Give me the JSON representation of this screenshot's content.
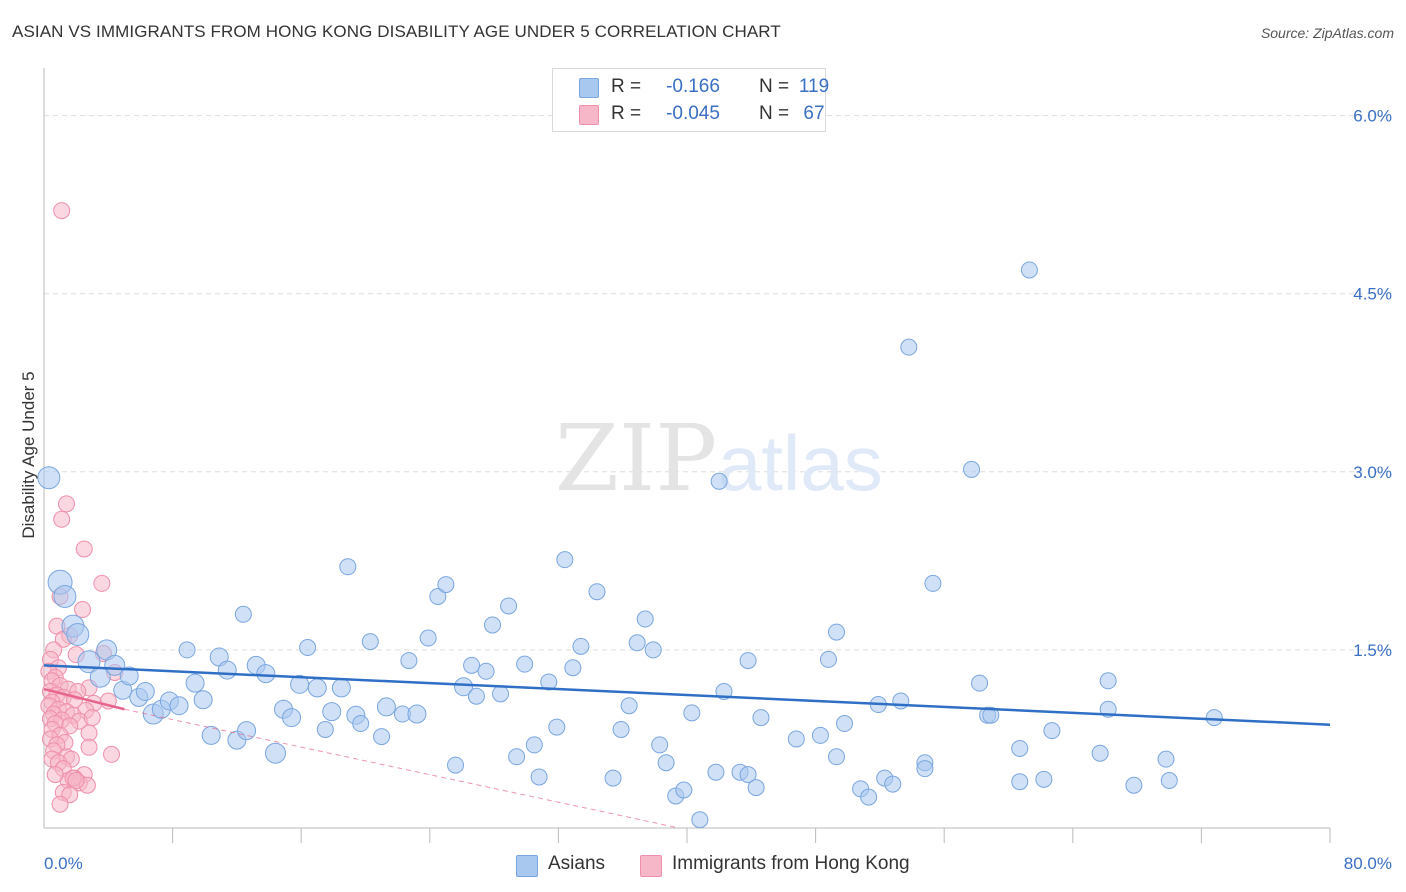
{
  "title": "ASIAN VS IMMIGRANTS FROM HONG KONG DISABILITY AGE UNDER 5 CORRELATION CHART",
  "source": "Source: ZipAtlas.com",
  "watermark": {
    "zip": "ZIP",
    "atlas": "atlas"
  },
  "legend": {
    "asians": {
      "r_label": "R =",
      "r_value": "-0.166",
      "n_label": "N =",
      "n_value": "119"
    },
    "hongkong": {
      "r_label": "R =",
      "r_value": "-0.045",
      "n_label": "N =",
      "n_value": "67"
    }
  },
  "bottom_legend": {
    "asians": "Asians",
    "hongkong": "Immigrants from Hong Kong"
  },
  "colors": {
    "asian_fill": "#a9c8f0",
    "asian_stroke": "#7aa6de",
    "asian_line": "#2f6fc6",
    "hk_fill": "#f6b7c9",
    "hk_stroke": "#ef8fab",
    "hk_line": "#e8668d",
    "tick_label": "#3a6fc4",
    "grid": "#dddddd"
  },
  "chart_data": {
    "type": "scatter",
    "title": "ASIAN VS IMMIGRANTS FROM HONG KONG DISABILITY AGE UNDER 5 CORRELATION CHART",
    "xlabel": "",
    "ylabel": "Disability Age Under 5",
    "xlim": [
      0,
      80
    ],
    "ylim": [
      0,
      6.3
    ],
    "x_tick_labels": [
      {
        "value": 0,
        "label": "0.0%"
      },
      {
        "value": 80,
        "label": "80.0%"
      }
    ],
    "y_tick_labels": [
      {
        "value": 1.5,
        "label": "1.5%"
      },
      {
        "value": 3.0,
        "label": "3.0%"
      },
      {
        "value": 4.5,
        "label": "4.5%"
      },
      {
        "value": 6.0,
        "label": "6.0%"
      }
    ],
    "grid": true,
    "series": [
      {
        "name": "Asians",
        "R": -0.166,
        "N": 119,
        "trend": {
          "x": [
            0,
            80
          ],
          "y": [
            1.37,
            0.87
          ]
        },
        "points": [
          {
            "x": 0.3,
            "y": 2.95,
            "s": 11
          },
          {
            "x": 1.0,
            "y": 2.07,
            "s": 12
          },
          {
            "x": 1.3,
            "y": 1.95,
            "s": 11
          },
          {
            "x": 1.8,
            "y": 1.7,
            "s": 11
          },
          {
            "x": 2.1,
            "y": 1.63,
            "s": 11
          },
          {
            "x": 2.8,
            "y": 1.4,
            "s": 11
          },
          {
            "x": 3.5,
            "y": 1.27,
            "s": 10
          },
          {
            "x": 3.9,
            "y": 1.5,
            "s": 10
          },
          {
            "x": 4.4,
            "y": 1.37,
            "s": 10
          },
          {
            "x": 4.9,
            "y": 1.16,
            "s": 9
          },
          {
            "x": 5.3,
            "y": 1.28,
            "s": 9
          },
          {
            "x": 5.9,
            "y": 1.1,
            "s": 9
          },
          {
            "x": 6.3,
            "y": 1.15,
            "s": 9
          },
          {
            "x": 6.8,
            "y": 0.96,
            "s": 10
          },
          {
            "x": 7.3,
            "y": 1.0,
            "s": 9
          },
          {
            "x": 7.8,
            "y": 1.07,
            "s": 9
          },
          {
            "x": 8.4,
            "y": 1.03,
            "s": 9
          },
          {
            "x": 8.9,
            "y": 1.5,
            "s": 8
          },
          {
            "x": 9.4,
            "y": 1.22,
            "s": 9
          },
          {
            "x": 9.9,
            "y": 1.08,
            "s": 9
          },
          {
            "x": 10.4,
            "y": 0.78,
            "s": 9
          },
          {
            "x": 10.9,
            "y": 1.44,
            "s": 9
          },
          {
            "x": 11.4,
            "y": 1.33,
            "s": 9
          },
          {
            "x": 12.0,
            "y": 0.74,
            "s": 9
          },
          {
            "x": 12.6,
            "y": 0.82,
            "s": 9
          },
          {
            "x": 12.4,
            "y": 1.8,
            "s": 8
          },
          {
            "x": 13.2,
            "y": 1.37,
            "s": 9
          },
          {
            "x": 13.8,
            "y": 1.3,
            "s": 9
          },
          {
            "x": 14.4,
            "y": 0.63,
            "s": 10
          },
          {
            "x": 14.9,
            "y": 1.0,
            "s": 9
          },
          {
            "x": 15.4,
            "y": 0.93,
            "s": 9
          },
          {
            "x": 15.9,
            "y": 1.21,
            "s": 9
          },
          {
            "x": 16.4,
            "y": 1.52,
            "s": 8
          },
          {
            "x": 17.0,
            "y": 1.18,
            "s": 9
          },
          {
            "x": 17.5,
            "y": 0.83,
            "s": 8
          },
          {
            "x": 17.9,
            "y": 0.98,
            "s": 9
          },
          {
            "x": 18.5,
            "y": 1.18,
            "s": 9
          },
          {
            "x": 18.9,
            "y": 2.2,
            "s": 8
          },
          {
            "x": 19.4,
            "y": 0.95,
            "s": 9
          },
          {
            "x": 19.7,
            "y": 0.88,
            "s": 8
          },
          {
            "x": 20.3,
            "y": 1.57,
            "s": 8
          },
          {
            "x": 21.0,
            "y": 0.77,
            "s": 8
          },
          {
            "x": 21.3,
            "y": 1.02,
            "s": 9
          },
          {
            "x": 22.3,
            "y": 0.96,
            "s": 8
          },
          {
            "x": 22.7,
            "y": 1.41,
            "s": 8
          },
          {
            "x": 23.2,
            "y": 0.96,
            "s": 9
          },
          {
            "x": 23.9,
            "y": 1.6,
            "s": 8
          },
          {
            "x": 24.5,
            "y": 1.95,
            "s": 8
          },
          {
            "x": 25.0,
            "y": 2.05,
            "s": 8
          },
          {
            "x": 25.6,
            "y": 0.53,
            "s": 8
          },
          {
            "x": 26.1,
            "y": 1.19,
            "s": 9
          },
          {
            "x": 26.6,
            "y": 1.37,
            "s": 8
          },
          {
            "x": 26.9,
            "y": 1.11,
            "s": 8
          },
          {
            "x": 27.5,
            "y": 1.32,
            "s": 8
          },
          {
            "x": 27.9,
            "y": 1.71,
            "s": 8
          },
          {
            "x": 28.4,
            "y": 1.13,
            "s": 8
          },
          {
            "x": 28.9,
            "y": 1.87,
            "s": 8
          },
          {
            "x": 29.4,
            "y": 0.6,
            "s": 8
          },
          {
            "x": 29.9,
            "y": 1.38,
            "s": 8
          },
          {
            "x": 30.5,
            "y": 0.7,
            "s": 8
          },
          {
            "x": 30.8,
            "y": 0.43,
            "s": 8
          },
          {
            "x": 31.4,
            "y": 1.23,
            "s": 8
          },
          {
            "x": 31.9,
            "y": 0.85,
            "s": 8
          },
          {
            "x": 32.4,
            "y": 2.26,
            "s": 8
          },
          {
            "x": 32.9,
            "y": 1.35,
            "s": 8
          },
          {
            "x": 33.4,
            "y": 1.53,
            "s": 8
          },
          {
            "x": 34.4,
            "y": 1.99,
            "s": 8
          },
          {
            "x": 35.4,
            "y": 0.42,
            "s": 8
          },
          {
            "x": 35.9,
            "y": 0.83,
            "s": 8
          },
          {
            "x": 36.4,
            "y": 1.03,
            "s": 8
          },
          {
            "x": 36.9,
            "y": 1.56,
            "s": 8
          },
          {
            "x": 37.4,
            "y": 1.76,
            "s": 8
          },
          {
            "x": 37.9,
            "y": 1.5,
            "s": 8
          },
          {
            "x": 38.3,
            "y": 0.7,
            "s": 8
          },
          {
            "x": 38.7,
            "y": 0.55,
            "s": 8
          },
          {
            "x": 39.3,
            "y": 0.27,
            "s": 8
          },
          {
            "x": 39.8,
            "y": 0.32,
            "s": 8
          },
          {
            "x": 40.3,
            "y": 0.97,
            "s": 8
          },
          {
            "x": 40.8,
            "y": 0.07,
            "s": 8
          },
          {
            "x": 41.8,
            "y": 0.47,
            "s": 8
          },
          {
            "x": 42.3,
            "y": 1.15,
            "s": 8
          },
          {
            "x": 42.0,
            "y": 2.92,
            "s": 8
          },
          {
            "x": 43.3,
            "y": 0.47,
            "s": 8
          },
          {
            "x": 43.8,
            "y": 0.45,
            "s": 8
          },
          {
            "x": 44.3,
            "y": 0.34,
            "s": 8
          },
          {
            "x": 44.6,
            "y": 0.93,
            "s": 8
          },
          {
            "x": 43.8,
            "y": 1.41,
            "s": 8
          },
          {
            "x": 46.8,
            "y": 0.75,
            "s": 8
          },
          {
            "x": 48.3,
            "y": 0.78,
            "s": 8
          },
          {
            "x": 48.8,
            "y": 1.42,
            "s": 8
          },
          {
            "x": 49.3,
            "y": 1.65,
            "s": 8
          },
          {
            "x": 49.8,
            "y": 0.88,
            "s": 8
          },
          {
            "x": 49.3,
            "y": 0.6,
            "s": 8
          },
          {
            "x": 50.8,
            "y": 0.33,
            "s": 8
          },
          {
            "x": 51.3,
            "y": 0.26,
            "s": 8
          },
          {
            "x": 51.9,
            "y": 1.04,
            "s": 8
          },
          {
            "x": 52.3,
            "y": 0.42,
            "s": 8
          },
          {
            "x": 52.8,
            "y": 0.37,
            "s": 8
          },
          {
            "x": 53.3,
            "y": 1.07,
            "s": 8
          },
          {
            "x": 53.8,
            "y": 4.05,
            "s": 8
          },
          {
            "x": 54.8,
            "y": 0.55,
            "s": 8
          },
          {
            "x": 54.8,
            "y": 0.5,
            "s": 8
          },
          {
            "x": 55.3,
            "y": 2.06,
            "s": 8
          },
          {
            "x": 57.7,
            "y": 3.02,
            "s": 8
          },
          {
            "x": 58.2,
            "y": 1.22,
            "s": 8
          },
          {
            "x": 58.7,
            "y": 0.95,
            "s": 8
          },
          {
            "x": 58.9,
            "y": 0.95,
            "s": 8
          },
          {
            "x": 60.7,
            "y": 0.39,
            "s": 8
          },
          {
            "x": 60.7,
            "y": 0.67,
            "s": 8
          },
          {
            "x": 61.3,
            "y": 4.7,
            "s": 8
          },
          {
            "x": 62.2,
            "y": 0.41,
            "s": 8
          },
          {
            "x": 62.7,
            "y": 0.82,
            "s": 8
          },
          {
            "x": 65.7,
            "y": 0.63,
            "s": 8
          },
          {
            "x": 66.2,
            "y": 1.0,
            "s": 8
          },
          {
            "x": 66.2,
            "y": 1.24,
            "s": 8
          },
          {
            "x": 67.8,
            "y": 0.36,
            "s": 8
          },
          {
            "x": 69.8,
            "y": 0.58,
            "s": 8
          },
          {
            "x": 70.0,
            "y": 0.4,
            "s": 8
          },
          {
            "x": 72.8,
            "y": 0.93,
            "s": 8
          }
        ]
      },
      {
        "name": "Immigrants from Hong Kong",
        "R": -0.045,
        "N": 67,
        "trend": {
          "x": [
            0,
            5.0
          ],
          "y": [
            1.17,
            1.0
          ]
        },
        "trend_extended": {
          "x": [
            5.0,
            39.5
          ],
          "y": [
            1.0,
            0.0
          ]
        },
        "points": [
          {
            "x": 1.1,
            "y": 5.2
          },
          {
            "x": 1.4,
            "y": 2.73
          },
          {
            "x": 1.1,
            "y": 2.6
          },
          {
            "x": 2.5,
            "y": 2.35
          },
          {
            "x": 3.6,
            "y": 2.06
          },
          {
            "x": 1.0,
            "y": 1.95
          },
          {
            "x": 2.4,
            "y": 1.84
          },
          {
            "x": 0.8,
            "y": 1.7
          },
          {
            "x": 1.6,
            "y": 1.62
          },
          {
            "x": 1.2,
            "y": 1.59
          },
          {
            "x": 0.6,
            "y": 1.5
          },
          {
            "x": 2.0,
            "y": 1.46
          },
          {
            "x": 3.7,
            "y": 1.47
          },
          {
            "x": 0.4,
            "y": 1.42
          },
          {
            "x": 0.9,
            "y": 1.35
          },
          {
            "x": 0.3,
            "y": 1.32
          },
          {
            "x": 4.4,
            "y": 1.31
          },
          {
            "x": 0.7,
            "y": 1.27
          },
          {
            "x": 0.5,
            "y": 1.24
          },
          {
            "x": 1.0,
            "y": 1.2
          },
          {
            "x": 1.5,
            "y": 1.17
          },
          {
            "x": 2.8,
            "y": 1.18
          },
          {
            "x": 2.1,
            "y": 1.15
          },
          {
            "x": 0.4,
            "y": 1.15
          },
          {
            "x": 0.8,
            "y": 1.12
          },
          {
            "x": 1.2,
            "y": 1.1
          },
          {
            "x": 1.9,
            "y": 1.08
          },
          {
            "x": 0.5,
            "y": 1.06
          },
          {
            "x": 3.1,
            "y": 1.05
          },
          {
            "x": 4.0,
            "y": 1.07
          },
          {
            "x": 0.3,
            "y": 1.03
          },
          {
            "x": 0.9,
            "y": 1.0
          },
          {
            "x": 1.4,
            "y": 0.98
          },
          {
            "x": 2.6,
            "y": 0.99
          },
          {
            "x": 0.6,
            "y": 0.96
          },
          {
            "x": 1.8,
            "y": 0.95
          },
          {
            "x": 0.4,
            "y": 0.92
          },
          {
            "x": 1.1,
            "y": 0.91
          },
          {
            "x": 2.2,
            "y": 0.9
          },
          {
            "x": 3.0,
            "y": 0.93
          },
          {
            "x": 0.7,
            "y": 0.88
          },
          {
            "x": 1.6,
            "y": 0.86
          },
          {
            "x": 0.5,
            "y": 0.83
          },
          {
            "x": 2.8,
            "y": 0.8
          },
          {
            "x": 1.0,
            "y": 0.78
          },
          {
            "x": 0.4,
            "y": 0.75
          },
          {
            "x": 1.3,
            "y": 0.72
          },
          {
            "x": 0.8,
            "y": 0.7
          },
          {
            "x": 2.8,
            "y": 0.68
          },
          {
            "x": 0.6,
            "y": 0.65
          },
          {
            "x": 4.2,
            "y": 0.62
          },
          {
            "x": 1.4,
            "y": 0.6
          },
          {
            "x": 0.5,
            "y": 0.58
          },
          {
            "x": 1.7,
            "y": 0.58
          },
          {
            "x": 0.9,
            "y": 0.55
          },
          {
            "x": 1.2,
            "y": 0.5
          },
          {
            "x": 2.5,
            "y": 0.45
          },
          {
            "x": 1.9,
            "y": 0.42
          },
          {
            "x": 1.5,
            "y": 0.4
          },
          {
            "x": 2.2,
            "y": 0.38
          },
          {
            "x": 2.7,
            "y": 0.36
          },
          {
            "x": 1.8,
            "y": 0.42
          },
          {
            "x": 1.2,
            "y": 0.3
          },
          {
            "x": 1.6,
            "y": 0.28
          },
          {
            "x": 1.0,
            "y": 0.2
          },
          {
            "x": 0.7,
            "y": 0.45
          },
          {
            "x": 2.0,
            "y": 0.4
          }
        ]
      }
    ]
  }
}
